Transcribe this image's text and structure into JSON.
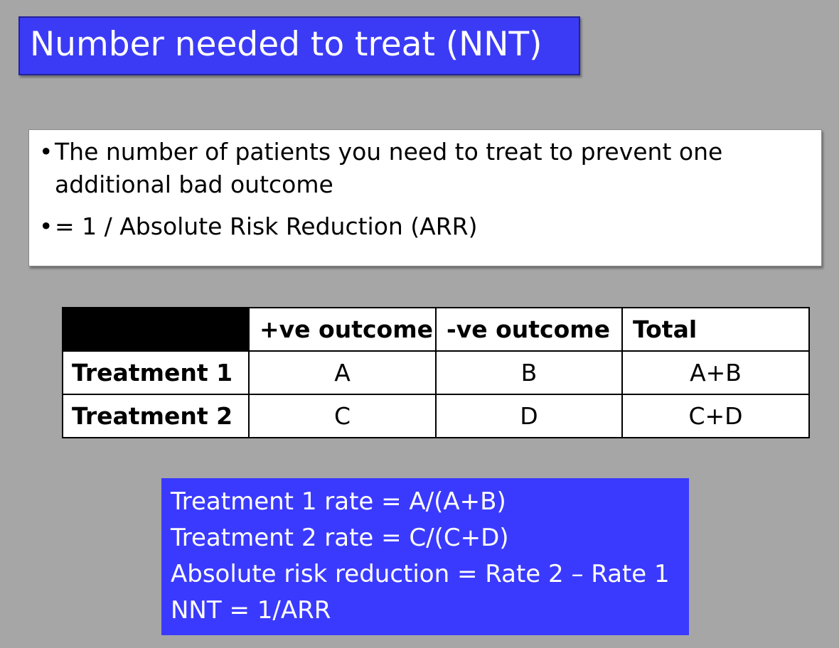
{
  "title": "Number needed to treat (NNT)",
  "bullets": [
    {
      "marker": "•",
      "line1": "The number of patients you need to treat to prevent one",
      "line2": "additional bad outcome"
    },
    {
      "marker": "•",
      "line1": "= 1 / Absolute Risk Reduction (ARR)"
    }
  ],
  "table": {
    "headers": [
      "",
      "+ve outcome",
      "-ve outcome",
      "Total"
    ],
    "rows": [
      {
        "label": "Treatment 1",
        "cells": [
          "A",
          "B",
          "A+B"
        ]
      },
      {
        "label": "Treatment 2",
        "cells": [
          "C",
          "D",
          "C+D"
        ]
      }
    ]
  },
  "formulas": [
    "Treatment 1 rate = A/(A+B)",
    "Treatment 2 rate = C/(C+D)",
    "Absolute risk reduction = Rate 2 – Rate 1",
    "NNT = 1/ARR"
  ],
  "colors": {
    "background": "#a6a6a6",
    "title_box": "#3b3bf6",
    "formula_box": "#3a3aff"
  }
}
